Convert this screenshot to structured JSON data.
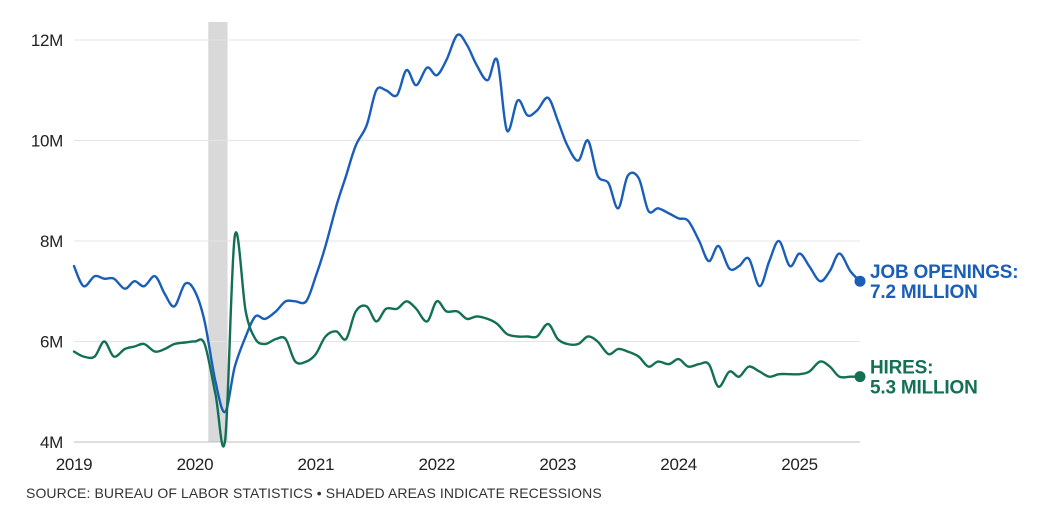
{
  "chart_data": {
    "type": "line",
    "ylim": [
      4,
      12.2
    ],
    "xlim": [
      2019.0,
      2025.6
    ],
    "y_ticks": [
      {
        "value": 12,
        "label": "12M"
      },
      {
        "value": 10,
        "label": "10M"
      },
      {
        "value": 8,
        "label": "8M"
      },
      {
        "value": 6,
        "label": "6M"
      },
      {
        "value": 4,
        "label": "4M"
      }
    ],
    "x_ticks": [
      {
        "value": 2019,
        "label": "2019"
      },
      {
        "value": 2020,
        "label": "2020"
      },
      {
        "value": 2021,
        "label": "2021"
      },
      {
        "value": 2022,
        "label": "2022"
      },
      {
        "value": 2023,
        "label": "2023"
      },
      {
        "value": 2024,
        "label": "2024"
      },
      {
        "value": 2025,
        "label": "2025"
      }
    ],
    "grid": true,
    "recession": {
      "start": 2020.11,
      "end": 2020.27
    },
    "series": [
      {
        "name": "Job openings",
        "color": "#1a5eb8",
        "end_label": [
          "JOB OPENINGS:",
          "7.2 MILLION"
        ],
        "points": [
          [
            2019.0,
            7.5
          ],
          [
            2019.08,
            7.1
          ],
          [
            2019.17,
            7.3
          ],
          [
            2019.25,
            7.25
          ],
          [
            2019.33,
            7.25
          ],
          [
            2019.42,
            7.05
          ],
          [
            2019.5,
            7.2
          ],
          [
            2019.58,
            7.1
          ],
          [
            2019.67,
            7.3
          ],
          [
            2019.75,
            6.95
          ],
          [
            2019.83,
            6.7
          ],
          [
            2019.92,
            7.15
          ],
          [
            2020.0,
            7.0
          ],
          [
            2020.08,
            6.4
          ],
          [
            2020.17,
            5.2
          ],
          [
            2020.25,
            4.6
          ],
          [
            2020.33,
            5.5
          ],
          [
            2020.42,
            6.1
          ],
          [
            2020.5,
            6.5
          ],
          [
            2020.58,
            6.45
          ],
          [
            2020.67,
            6.6
          ],
          [
            2020.75,
            6.8
          ],
          [
            2020.83,
            6.8
          ],
          [
            2020.92,
            6.8
          ],
          [
            2021.0,
            7.3
          ],
          [
            2021.08,
            7.9
          ],
          [
            2021.17,
            8.7
          ],
          [
            2021.25,
            9.3
          ],
          [
            2021.33,
            9.9
          ],
          [
            2021.42,
            10.3
          ],
          [
            2021.5,
            11.0
          ],
          [
            2021.58,
            11.0
          ],
          [
            2021.67,
            10.9
          ],
          [
            2021.75,
            11.4
          ],
          [
            2021.83,
            11.1
          ],
          [
            2021.92,
            11.45
          ],
          [
            2022.0,
            11.3
          ],
          [
            2022.08,
            11.6
          ],
          [
            2022.17,
            12.1
          ],
          [
            2022.25,
            11.9
          ],
          [
            2022.33,
            11.5
          ],
          [
            2022.42,
            11.2
          ],
          [
            2022.5,
            11.6
          ],
          [
            2022.58,
            10.2
          ],
          [
            2022.67,
            10.8
          ],
          [
            2022.75,
            10.5
          ],
          [
            2022.83,
            10.6
          ],
          [
            2022.92,
            10.85
          ],
          [
            2023.0,
            10.4
          ],
          [
            2023.08,
            9.9
          ],
          [
            2023.17,
            9.6
          ],
          [
            2023.25,
            10.0
          ],
          [
            2023.33,
            9.3
          ],
          [
            2023.42,
            9.15
          ],
          [
            2023.5,
            8.65
          ],
          [
            2023.58,
            9.3
          ],
          [
            2023.67,
            9.25
          ],
          [
            2023.75,
            8.6
          ],
          [
            2023.83,
            8.65
          ],
          [
            2023.92,
            8.55
          ],
          [
            2024.0,
            8.45
          ],
          [
            2024.08,
            8.4
          ],
          [
            2024.17,
            8.0
          ],
          [
            2024.25,
            7.6
          ],
          [
            2024.33,
            7.9
          ],
          [
            2024.42,
            7.45
          ],
          [
            2024.5,
            7.5
          ],
          [
            2024.58,
            7.65
          ],
          [
            2024.67,
            7.1
          ],
          [
            2024.75,
            7.6
          ],
          [
            2024.83,
            8.0
          ],
          [
            2024.92,
            7.5
          ],
          [
            2025.0,
            7.75
          ],
          [
            2025.08,
            7.5
          ],
          [
            2025.17,
            7.2
          ],
          [
            2025.25,
            7.4
          ],
          [
            2025.33,
            7.75
          ],
          [
            2025.42,
            7.4
          ],
          [
            2025.5,
            7.2
          ]
        ]
      },
      {
        "name": "Hires",
        "color": "#137055",
        "end_label": [
          "HIRES:",
          "5.3 MILLION"
        ],
        "points": [
          [
            2019.0,
            5.8
          ],
          [
            2019.08,
            5.7
          ],
          [
            2019.17,
            5.7
          ],
          [
            2019.25,
            6.0
          ],
          [
            2019.33,
            5.7
          ],
          [
            2019.42,
            5.85
          ],
          [
            2019.5,
            5.9
          ],
          [
            2019.58,
            5.95
          ],
          [
            2019.67,
            5.8
          ],
          [
            2019.75,
            5.85
          ],
          [
            2019.83,
            5.95
          ],
          [
            2019.92,
            5.98
          ],
          [
            2020.0,
            6.0
          ],
          [
            2020.08,
            5.95
          ],
          [
            2020.17,
            4.95
          ],
          [
            2020.25,
            4.05
          ],
          [
            2020.33,
            8.1
          ],
          [
            2020.42,
            6.6
          ],
          [
            2020.5,
            6.05
          ],
          [
            2020.58,
            5.95
          ],
          [
            2020.67,
            6.05
          ],
          [
            2020.75,
            6.05
          ],
          [
            2020.83,
            5.6
          ],
          [
            2020.92,
            5.6
          ],
          [
            2021.0,
            5.75
          ],
          [
            2021.08,
            6.1
          ],
          [
            2021.17,
            6.2
          ],
          [
            2021.25,
            6.05
          ],
          [
            2021.33,
            6.6
          ],
          [
            2021.42,
            6.7
          ],
          [
            2021.5,
            6.4
          ],
          [
            2021.58,
            6.65
          ],
          [
            2021.67,
            6.65
          ],
          [
            2021.75,
            6.8
          ],
          [
            2021.83,
            6.65
          ],
          [
            2021.92,
            6.4
          ],
          [
            2022.0,
            6.8
          ],
          [
            2022.08,
            6.6
          ],
          [
            2022.17,
            6.6
          ],
          [
            2022.25,
            6.45
          ],
          [
            2022.33,
            6.5
          ],
          [
            2022.42,
            6.45
          ],
          [
            2022.5,
            6.35
          ],
          [
            2022.58,
            6.15
          ],
          [
            2022.67,
            6.1
          ],
          [
            2022.75,
            6.1
          ],
          [
            2022.83,
            6.1
          ],
          [
            2022.92,
            6.35
          ],
          [
            2023.0,
            6.05
          ],
          [
            2023.08,
            5.95
          ],
          [
            2023.17,
            5.95
          ],
          [
            2023.25,
            6.1
          ],
          [
            2023.33,
            6.0
          ],
          [
            2023.42,
            5.75
          ],
          [
            2023.5,
            5.85
          ],
          [
            2023.58,
            5.8
          ],
          [
            2023.67,
            5.7
          ],
          [
            2023.75,
            5.5
          ],
          [
            2023.83,
            5.6
          ],
          [
            2023.92,
            5.55
          ],
          [
            2024.0,
            5.65
          ],
          [
            2024.08,
            5.5
          ],
          [
            2024.17,
            5.55
          ],
          [
            2024.25,
            5.55
          ],
          [
            2024.33,
            5.1
          ],
          [
            2024.42,
            5.4
          ],
          [
            2024.5,
            5.3
          ],
          [
            2024.58,
            5.5
          ],
          [
            2024.67,
            5.4
          ],
          [
            2024.75,
            5.3
          ],
          [
            2024.83,
            5.35
          ],
          [
            2024.92,
            5.35
          ],
          [
            2025.0,
            5.35
          ],
          [
            2025.08,
            5.4
          ],
          [
            2025.17,
            5.6
          ],
          [
            2025.25,
            5.5
          ],
          [
            2025.33,
            5.3
          ],
          [
            2025.42,
            5.3
          ],
          [
            2025.5,
            5.3
          ]
        ]
      }
    ]
  },
  "footer": {
    "source_text": "SOURCE: BUREAU OF LABOR STATISTICS • SHADED AREAS INDICATE RECESSIONS"
  }
}
